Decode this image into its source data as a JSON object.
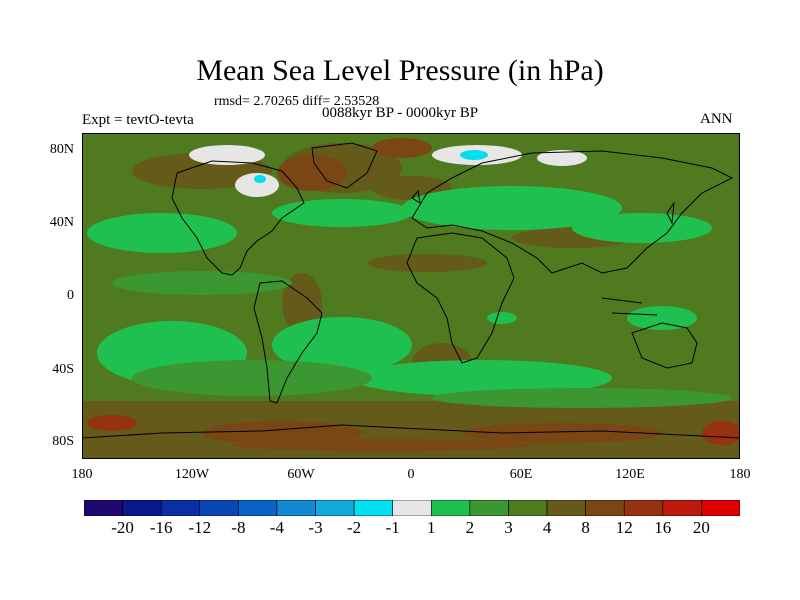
{
  "title": "Mean Sea Level Pressure (in hPa)",
  "stats_line": "rmsd= 2.70265 diff= 2.53528",
  "period": "0088kyr BP - 0000kyr BP",
  "experiment": "Expt = tevtO-tevta",
  "season": "ANN",
  "map": {
    "lat_labels": [
      "80N",
      "40N",
      "0",
      "40S",
      "80S"
    ],
    "lon_labels": [
      "180",
      "120W",
      "60W",
      "0",
      "60E",
      "120E",
      "180"
    ],
    "background_level_color": "#4f7a1f"
  },
  "colorbar": {
    "labels": [
      "-20",
      "-16",
      "-12",
      "-8",
      "-4",
      "-3",
      "-2",
      "-1",
      "1",
      "2",
      "3",
      "4",
      "8",
      "12",
      "16",
      "20"
    ],
    "colors": [
      "#1e0a6e",
      "#0a1a8c",
      "#0a2ea5",
      "#0a46b4",
      "#0a64c8",
      "#1488d2",
      "#14aadc",
      "#00e0f0",
      "#e6e6e6",
      "#20c050",
      "#3c9632",
      "#4f7a1f",
      "#645a19",
      "#7a4614",
      "#96320f",
      "#be190a",
      "#dc0000"
    ]
  }
}
